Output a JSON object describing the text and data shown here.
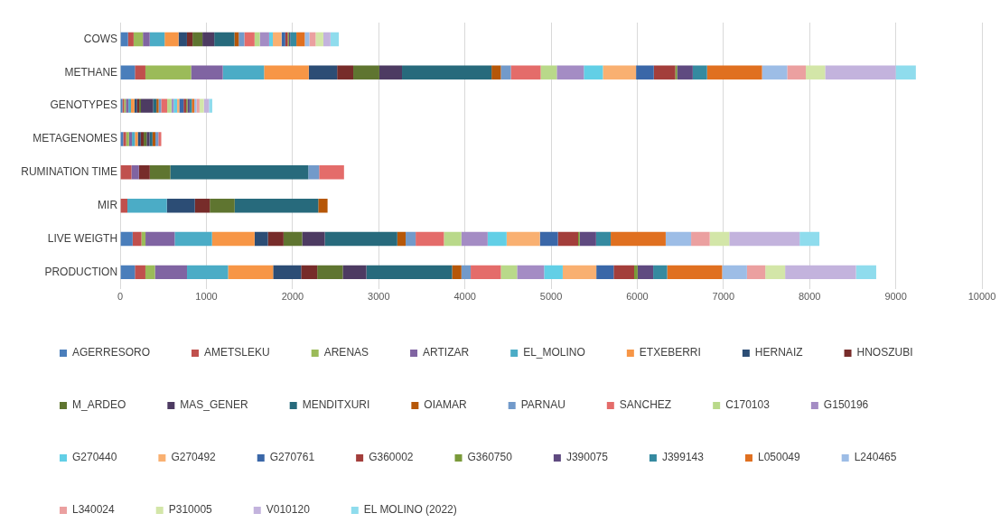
{
  "chart_data": {
    "type": "bar",
    "orientation": "horizontal",
    "stacked": true,
    "grid": "x",
    "legend": "bottom",
    "categories": [
      "COWS",
      "METHANE",
      "GENOTYPES",
      "METAGENOMES",
      "RUMINATION TIME",
      "MIR",
      "LIVE WEIGTH",
      "PRODUCTION"
    ],
    "xlim": [
      0,
      10000
    ],
    "xticks": [
      0,
      1000,
      2000,
      3000,
      4000,
      5000,
      6000,
      7000,
      8000,
      9000,
      10000
    ],
    "series": [
      {
        "name": "AGERRESORO",
        "color": "#4a7ebb",
        "values": [
          90,
          170,
          25,
          34,
          null,
          null,
          144,
          170
        ]
      },
      {
        "name": "AMETSLEKU",
        "color": "#c0504d",
        "values": [
          65,
          122,
          20,
          34,
          130,
          83,
          102,
          122
        ]
      },
      {
        "name": "ARENAS",
        "color": "#9bbb59",
        "values": [
          108,
          530,
          20,
          34,
          null,
          null,
          47,
          111
        ]
      },
      {
        "name": "ARTIZAR",
        "color": "#8064a2",
        "values": [
          79,
          368,
          30,
          34,
          87,
          null,
          339,
          372
        ]
      },
      {
        "name": "EL_MOLINO",
        "color": "#4bacc6",
        "values": [
          173,
          479,
          30,
          34,
          null,
          458,
          433,
          476
        ]
      },
      {
        "name": "ETXEBERRI",
        "color": "#f79646",
        "values": [
          162,
          519,
          40,
          34,
          null,
          null,
          494,
          523
        ]
      },
      {
        "name": "HERNAIZ",
        "color": "#2c4d75",
        "values": [
          97,
          329,
          30,
          34,
          null,
          325,
          155,
          325
        ]
      },
      {
        "name": "HNOSZUBI",
        "color": "#772c2a",
        "values": [
          65,
          187,
          25,
          34,
          126,
          173,
          181,
          187
        ]
      },
      {
        "name": "M_ARDEO",
        "color": "#5f7530",
        "values": [
          115,
          303,
          20,
          34,
          238,
          289,
          216,
          296
        ]
      },
      {
        "name": "MAS_GENER",
        "color": "#4d3b62",
        "values": [
          137,
          263,
          140,
          34,
          null,
          null,
          263,
          274
        ]
      },
      {
        "name": "MENDITXURI",
        "color": "#276a7c",
        "values": [
          234,
          1039,
          40,
          34,
          1601,
          970,
          841,
          995
        ]
      },
      {
        "name": "OIAMAR",
        "color": "#b65708",
        "values": [
          50,
          108,
          25,
          34,
          null,
          108,
          97,
          108
        ]
      },
      {
        "name": "PARNAU",
        "color": "#729aca",
        "values": [
          65,
          116,
          30,
          34,
          126,
          null,
          116,
          108
        ]
      },
      {
        "name": "SANCHEZ",
        "color": "#e46c6a",
        "values": [
          119,
          346,
          70,
          34,
          289,
          null,
          328,
          350
        ]
      },
      {
        "name": "C170103",
        "color": "#b9d98a",
        "values": [
          61,
          187,
          50,
          null,
          null,
          null,
          202,
          188
        ]
      },
      {
        "name": "G150196",
        "color": "#a48cc4",
        "values": [
          108,
          314,
          25,
          null,
          null,
          null,
          306,
          314
        ]
      },
      {
        "name": "G270440",
        "color": "#62cfe6",
        "values": [
          43,
          221,
          40,
          null,
          null,
          null,
          220,
          216
        ]
      },
      {
        "name": "G270492",
        "color": "#f9b071",
        "values": [
          101,
          385,
          25,
          null,
          null,
          null,
          386,
          390
        ]
      },
      {
        "name": "G270761",
        "color": "#3a67a8",
        "values": [
          43,
          206,
          50,
          null,
          null,
          null,
          209,
          201
        ]
      },
      {
        "name": "G360002",
        "color": "#a33e3b",
        "values": [
          29,
          249,
          30,
          null,
          null,
          null,
          235,
          238
        ]
      },
      {
        "name": "G360750",
        "color": "#7a9a3a",
        "values": [
          14,
          22,
          15,
          null,
          null,
          null,
          18,
          40
        ]
      },
      {
        "name": "J390075",
        "color": "#5f4a80",
        "values": [
          14,
          181,
          25,
          null,
          null,
          null,
          190,
          181
        ]
      },
      {
        "name": "J399143",
        "color": "#358aa0",
        "values": [
          72,
          166,
          25,
          null,
          null,
          null,
          170,
          162
        ]
      },
      {
        "name": "L050049",
        "color": "#e07020",
        "values": [
          97,
          638,
          30,
          null,
          null,
          null,
          638,
          638
        ]
      },
      {
        "name": "L240465",
        "color": "#9dbde6",
        "values": [
          54,
          292,
          25,
          null,
          null,
          null,
          295,
          288
        ]
      },
      {
        "name": "L340024",
        "color": "#eba0a0",
        "values": [
          72,
          216,
          35,
          null,
          null,
          null,
          216,
          213
        ]
      },
      {
        "name": "P310005",
        "color": "#d3e6a8",
        "values": [
          90,
          224,
          50,
          null,
          null,
          null,
          227,
          230
        ]
      },
      {
        "name": "V010120",
        "color": "#c3b3dd",
        "values": [
          83,
          819,
          60,
          null,
          null,
          null,
          816,
          822
        ]
      },
      {
        "name": "EL MOLINO (2022)",
        "color": "#8fdced",
        "values": [
          97,
          234,
          38,
          null,
          null,
          null,
          230,
          235
        ]
      }
    ]
  }
}
